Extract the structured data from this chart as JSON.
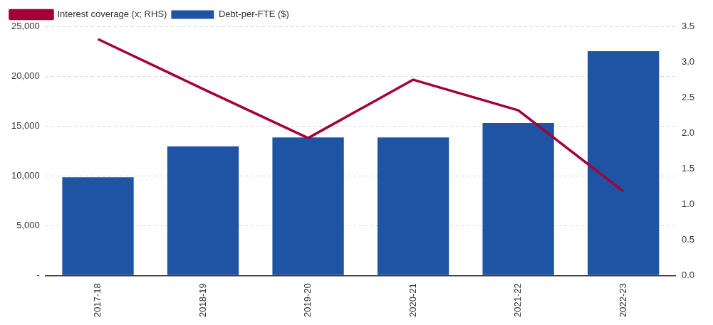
{
  "chart_data": {
    "type": "bar",
    "categories": [
      "2017-18",
      "2018-19",
      "2019-20",
      "2020-21",
      "2021-22",
      "2022-23"
    ],
    "series": [
      {
        "name": "Debt-per-FTE ($)",
        "color": "#1f54a4",
        "values": [
          9850,
          12950,
          13850,
          13850,
          15300,
          22500
        ]
      },
      {
        "name": "Interest coverage (x; RHS)",
        "type": "line",
        "axis": "y2",
        "color": "#a3003a",
        "values": [
          3.32,
          2.62,
          1.93,
          2.75,
          2.32,
          1.18
        ]
      }
    ],
    "ylim": [
      0,
      25000
    ],
    "yticks": [
      {
        "value": 0,
        "label": "-"
      },
      {
        "value": 5000,
        "label": "5,000"
      },
      {
        "value": 10000,
        "label": "10,000"
      },
      {
        "value": 15000,
        "label": "15,000"
      },
      {
        "value": 20000,
        "label": "20,000"
      },
      {
        "value": 25000,
        "label": "25,000"
      }
    ],
    "y2lim": [
      0,
      3.5
    ],
    "y2ticks": [
      {
        "value": 0,
        "label": "0.0"
      },
      0.5,
      {
        "value": 1,
        "label": "1.0"
      },
      1.5,
      {
        "value": 2,
        "label": "2.0"
      },
      2.5,
      {
        "value": 3,
        "label": "3.0"
      },
      3.5
    ],
    "grid": "y",
    "legend": "top left",
    "marker": "none"
  }
}
